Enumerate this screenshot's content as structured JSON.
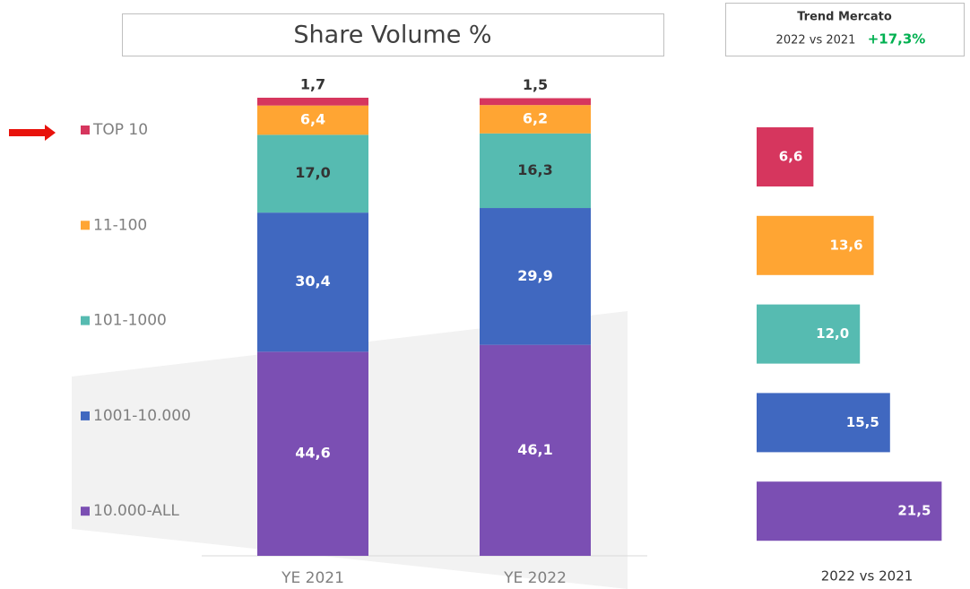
{
  "trend": {
    "title": "Trend Mercato",
    "period": "2022 vs 2021",
    "change": "+17,3%"
  },
  "chart_data": [
    {
      "type": "stacked-bar",
      "title": "Share Volume %",
      "categories": [
        "YE 2021",
        "YE 2022"
      ],
      "series": [
        {
          "name": "TOP 10",
          "color": "#d6365e",
          "label_color": "#333333",
          "values": [
            1.7,
            1.5
          ],
          "value_labels": [
            "1,7",
            "1,5"
          ]
        },
        {
          "name": "11-100",
          "color": "#ffa533",
          "label_color": "#ffffff",
          "values": [
            6.4,
            6.2
          ],
          "value_labels": [
            "6,4",
            "6,2"
          ]
        },
        {
          "name": "101-1000",
          "color": "#56bbb1",
          "label_color": "#333333",
          "values": [
            17.0,
            16.3
          ],
          "value_labels": [
            "17,0",
            "16,3"
          ]
        },
        {
          "name": "1001-10.000",
          "color": "#4068c0",
          "label_color": "#ffffff",
          "values": [
            30.4,
            29.9
          ],
          "value_labels": [
            "30,4",
            "29,9"
          ]
        },
        {
          "name": "10.000-ALL",
          "color": "#7b4fb3",
          "label_color": "#ffffff",
          "values": [
            44.6,
            46.1
          ],
          "value_labels": [
            "44,6",
            "46,1"
          ]
        }
      ]
    },
    {
      "type": "barh",
      "xlabel": "2022 vs 2021",
      "values": [
        6.6,
        13.6,
        12.0,
        15.5,
        21.5
      ],
      "value_labels": [
        "6,6",
        "13,6",
        "12,0",
        "15,5",
        "21,5"
      ],
      "colors": [
        "#d6365e",
        "#ffa533",
        "#56bbb1",
        "#4068c0",
        "#7b4fb3"
      ]
    }
  ]
}
